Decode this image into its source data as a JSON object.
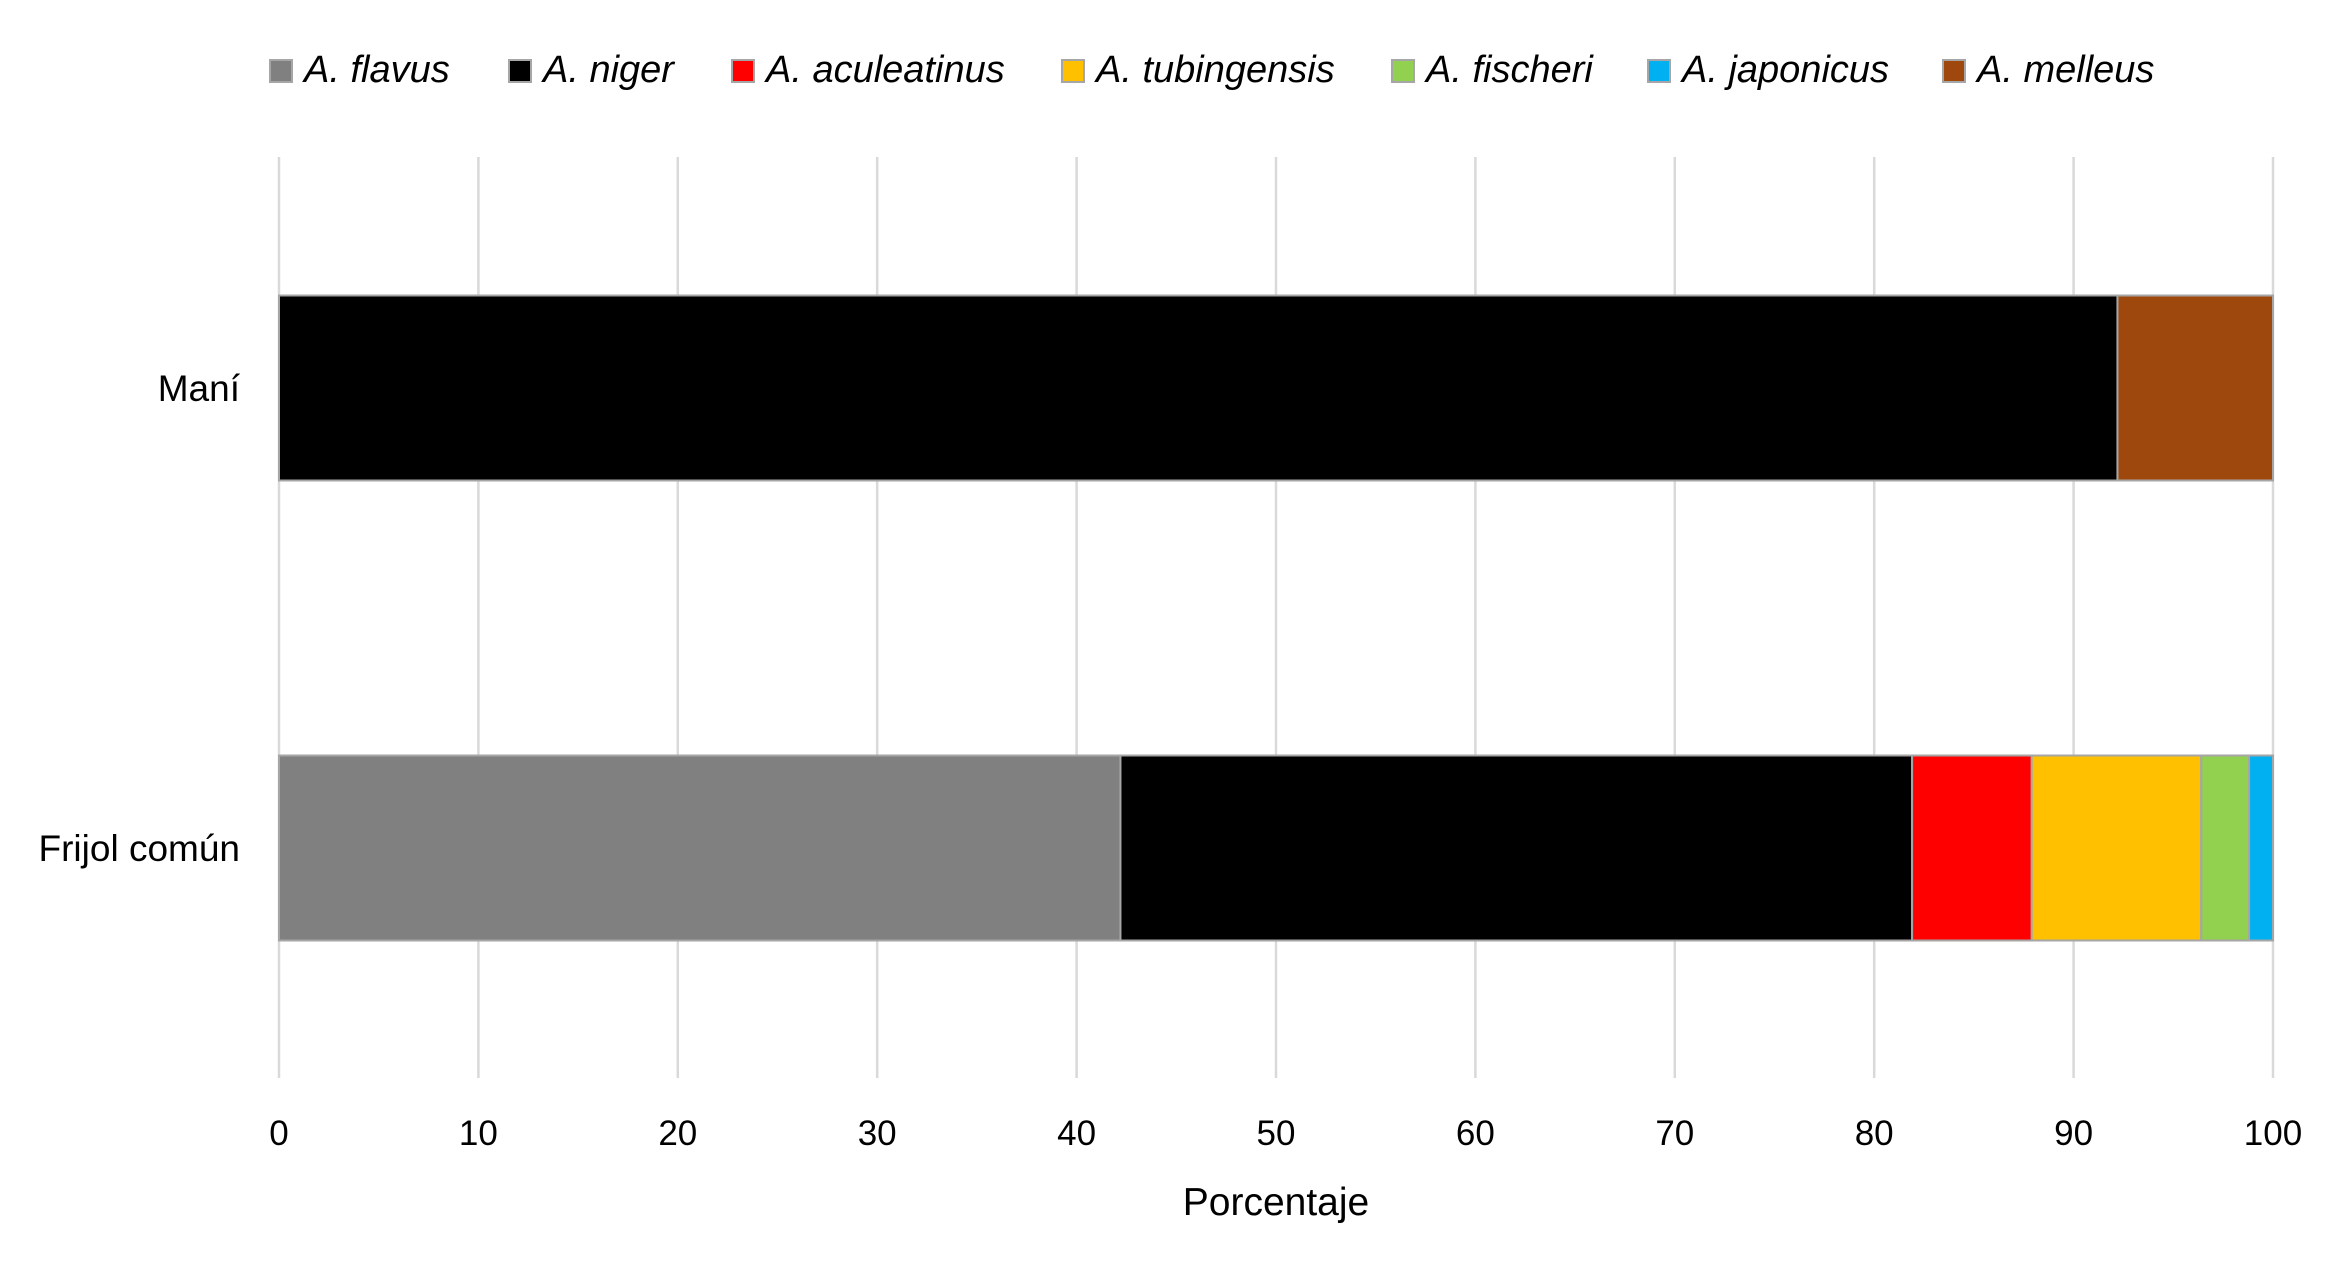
{
  "chart_data": {
    "type": "bar",
    "orientation": "horizontal",
    "stacked": true,
    "categories": [
      "Maní",
      "Frijol común"
    ],
    "series": [
      {
        "name": "A. flavus",
        "color": "#808080",
        "values": [
          0,
          42.2
        ]
      },
      {
        "name": "A. niger",
        "color": "#000000",
        "values": [
          92.2,
          39.7
        ]
      },
      {
        "name": "A. aculeatinus",
        "color": "#ff0000",
        "values": [
          0,
          6.0
        ]
      },
      {
        "name": "A. tubingensis",
        "color": "#ffc000",
        "values": [
          0,
          8.5
        ]
      },
      {
        "name": "A. fischeri",
        "color": "#92d050",
        "values": [
          0,
          2.4
        ]
      },
      {
        "name": "A. japonicus",
        "color": "#00b0f0",
        "values": [
          0,
          1.2
        ]
      },
      {
        "name": "A. melleus",
        "color": "#9e480e",
        "values": [
          7.8,
          0
        ]
      }
    ],
    "xlabel": "Porcentaje",
    "ylabel": "",
    "xlim": [
      0,
      100
    ],
    "xticks": [
      "0",
      "10",
      "20",
      "30",
      "40",
      "50",
      "60",
      "70",
      "80",
      "90",
      "100"
    ],
    "grid": "vertical",
    "legend_position": "top"
  }
}
